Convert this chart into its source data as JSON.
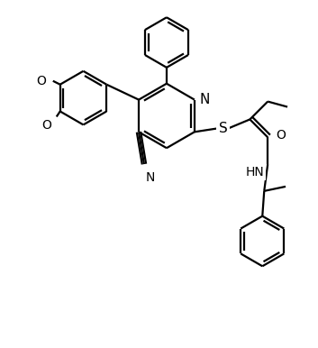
{
  "bg_color": "#ffffff",
  "lc": "#000000",
  "tc": "#000000",
  "lw": 1.6,
  "figsize": [
    3.53,
    3.86
  ],
  "dpi": 100,
  "labels": {
    "N": "N",
    "S": "S",
    "O1": "O",
    "O2": "O",
    "HN": "HN",
    "O_co": "O",
    "CN_N": "N"
  }
}
